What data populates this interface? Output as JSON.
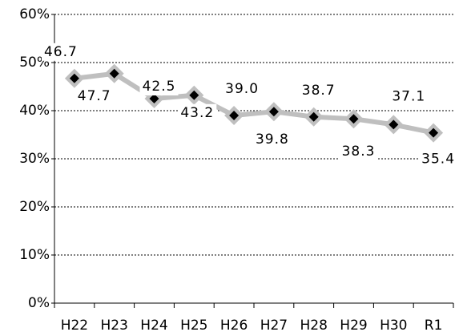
{
  "chart_data": {
    "type": "line",
    "categories": [
      "H22",
      "H23",
      "H24",
      "H25",
      "H26",
      "H27",
      "H28",
      "H29",
      "H30",
      "R1"
    ],
    "series": [
      {
        "color": "#bfbfbf",
        "values": [
          46.7,
          47.7,
          42.5,
          43.2,
          39.0,
          39.8,
          38.7,
          38.3,
          37.1,
          35.4
        ],
        "value_labels": [
          "46.7",
          "47.7",
          "42.5",
          "43.2",
          "39.0",
          "39.8",
          "38.7",
          "38.3",
          "37.1",
          "35.4"
        ]
      }
    ],
    "ylim": [
      0,
      60
    ],
    "yticks": [
      {
        "value": 0,
        "label": "0%"
      },
      {
        "value": 10,
        "label": "10%"
      },
      {
        "value": 20,
        "label": "20%"
      },
      {
        "value": 30,
        "label": "30%"
      },
      {
        "value": 40,
        "label": "40%"
      },
      {
        "value": 50,
        "label": "50%"
      },
      {
        "value": 60,
        "label": "60%"
      }
    ],
    "grid": true
  }
}
